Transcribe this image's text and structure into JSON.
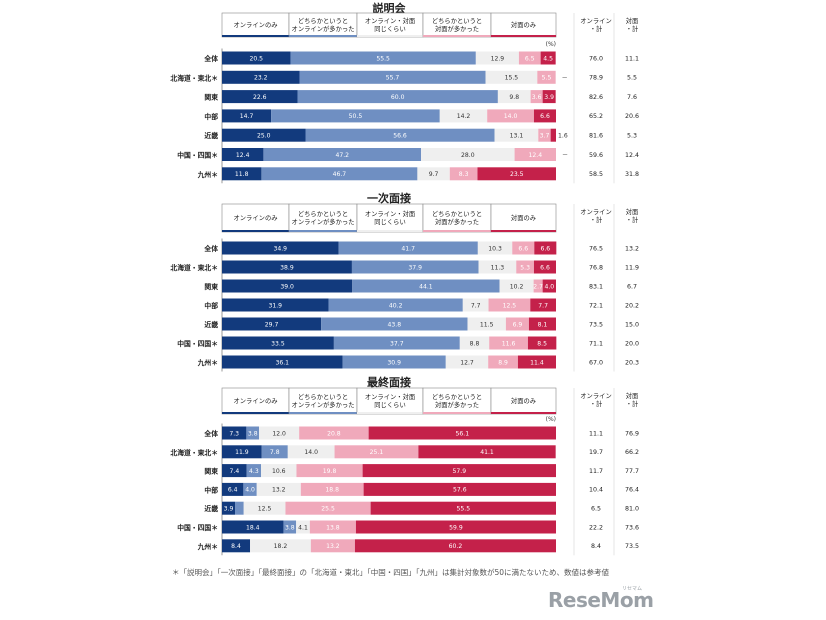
{
  "colors": {
    "online": "#123a7d",
    "lean_online": "#6f8fc2",
    "same": "#efefef",
    "lean_face": "#f0a9bb",
    "face": "#c4214a",
    "text_light": "#ffffff",
    "text_dark": "#333333"
  },
  "header_labels": {
    "online": "オンラインのみ",
    "lean_online": [
      "どちらかというと",
      "オンラインが多かった"
    ],
    "same": [
      "オンライン・対面",
      "同じくらい"
    ],
    "lean_face": [
      "どちらかというと",
      "対面が多かった"
    ],
    "face": "対面のみ",
    "online_total": [
      "オンライン",
      "・計"
    ],
    "face_total": [
      "対面",
      "・計"
    ]
  },
  "percent_unit": "(%)",
  "footnote": "＊「説明会」「一次面接」「最終面接」の「北海道・東北」「中国・四国」「九州」は集計対象数が50に満たないため、数値は参考値",
  "logo": "ReseMom",
  "logo_sub": "リセマム",
  "chart_data": [
    {
      "type": "bar",
      "stacked": true,
      "title": "説明会",
      "categories": [
        "全体",
        "北海道・東北＊",
        "関東",
        "中部",
        "近畿",
        "中国・四国＊",
        "九州＊"
      ],
      "series": [
        {
          "name": "オンラインのみ",
          "values": [
            20.5,
            23.2,
            22.6,
            14.7,
            25.0,
            12.4,
            11.8
          ]
        },
        {
          "name": "どちらかというとオンラインが多かった",
          "values": [
            55.5,
            55.7,
            60.0,
            50.5,
            56.6,
            47.2,
            46.7
          ]
        },
        {
          "name": "オンライン・対面同じくらい",
          "values": [
            12.9,
            15.5,
            9.8,
            14.2,
            13.1,
            28.0,
            9.7
          ]
        },
        {
          "name": "どちらかというと対面が多かった",
          "values": [
            6.5,
            5.5,
            3.6,
            14.0,
            3.7,
            12.4,
            8.3
          ]
        },
        {
          "name": "対面のみ",
          "values": [
            4.5,
            null,
            3.9,
            6.6,
            1.6,
            null,
            23.5
          ]
        }
      ],
      "face_only_labels": [
        "4.5",
        "－",
        "3.9",
        "6.6",
        "1.6",
        "－",
        "23.5"
      ],
      "online_total": [
        76.0,
        78.9,
        82.6,
        65.2,
        81.6,
        59.6,
        58.5
      ],
      "face_total": [
        11.1,
        5.5,
        7.6,
        20.6,
        5.3,
        12.4,
        31.8
      ],
      "unit": "(%)"
    },
    {
      "type": "bar",
      "stacked": true,
      "title": "一次面接",
      "categories": [
        "全体",
        "北海道・東北＊",
        "関東",
        "中部",
        "近畿",
        "中国・四国＊",
        "九州＊"
      ],
      "series": [
        {
          "name": "オンラインのみ",
          "values": [
            34.9,
            38.9,
            39.0,
            31.9,
            29.7,
            33.5,
            36.1
          ]
        },
        {
          "name": "どちらかというとオンラインが多かった",
          "values": [
            41.7,
            37.9,
            44.1,
            40.2,
            43.8,
            37.7,
            30.9
          ]
        },
        {
          "name": "オンライン・対面同じくらい",
          "values": [
            10.3,
            11.3,
            10.2,
            7.7,
            11.5,
            8.8,
            12.7
          ]
        },
        {
          "name": "どちらかというと対面が多かった",
          "values": [
            6.6,
            5.3,
            2.7,
            12.5,
            6.9,
            11.6,
            8.9
          ]
        },
        {
          "name": "対面のみ",
          "values": [
            6.6,
            6.6,
            4.0,
            7.7,
            8.1,
            8.5,
            11.4
          ]
        }
      ],
      "online_total": [
        76.5,
        76.8,
        83.1,
        72.1,
        73.5,
        71.1,
        67.0
      ],
      "face_total": [
        13.2,
        11.9,
        6.7,
        20.2,
        15.0,
        20.0,
        20.3
      ]
    },
    {
      "type": "bar",
      "stacked": true,
      "title": "最終面接",
      "categories": [
        "全体",
        "北海道・東北＊",
        "関東",
        "中部",
        "近畿",
        "中国・四国＊",
        "九州＊"
      ],
      "series": [
        {
          "name": "オンラインのみ",
          "values": [
            7.3,
            11.9,
            7.4,
            6.4,
            3.9,
            18.4,
            8.4
          ]
        },
        {
          "name": "どちらかというとオンラインが多かった",
          "values": [
            3.8,
            7.8,
            4.3,
            4.0,
            2.6,
            3.8,
            0.0
          ]
        },
        {
          "name": "オンライン・対面同じくらい",
          "values": [
            12.0,
            14.0,
            10.6,
            13.2,
            12.5,
            4.1,
            18.2
          ]
        },
        {
          "name": "どちらかというと対面が多かった",
          "values": [
            20.8,
            25.1,
            19.8,
            18.8,
            25.5,
            13.8,
            13.2
          ]
        },
        {
          "name": "対面のみ",
          "values": [
            56.1,
            41.1,
            57.9,
            57.6,
            55.5,
            59.9,
            60.2
          ]
        }
      ],
      "online_total": [
        11.1,
        19.7,
        11.7,
        10.4,
        6.5,
        22.2,
        8.4
      ],
      "face_total": [
        76.9,
        66.2,
        77.7,
        76.4,
        81.0,
        73.6,
        73.5
      ],
      "unit": "(%)"
    }
  ]
}
